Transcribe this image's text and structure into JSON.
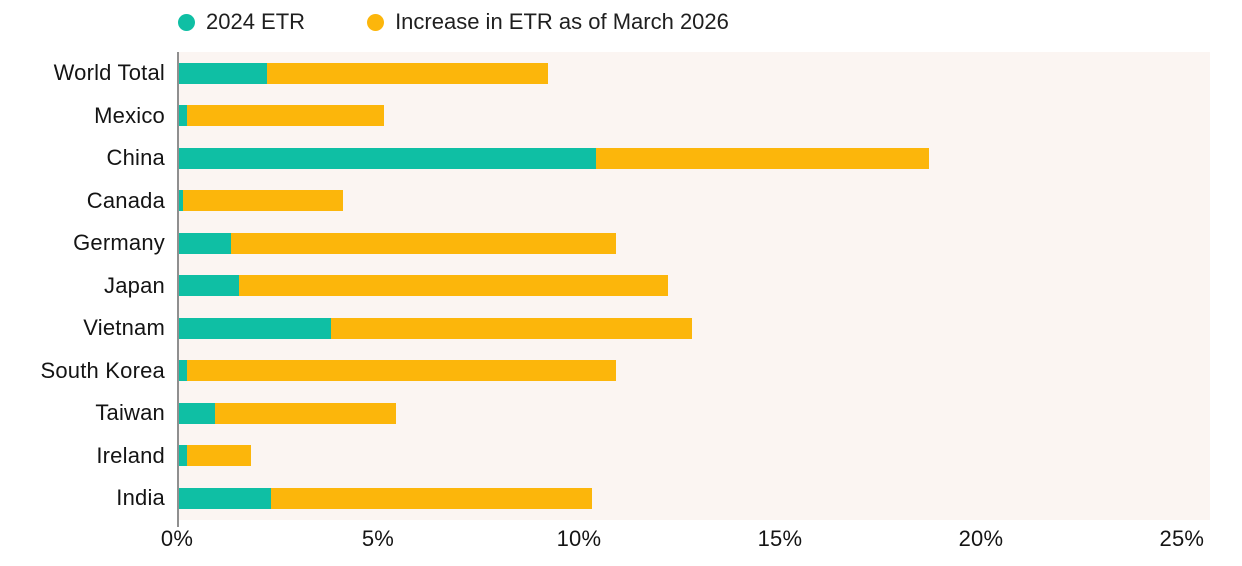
{
  "chart_data": {
    "type": "bar",
    "orientation": "horizontal",
    "stacked": true,
    "title": "",
    "xlabel": "",
    "ylabel": "",
    "categories": [
      "World Total",
      "Mexico",
      "China",
      "Canada",
      "Germany",
      "Japan",
      "Vietnam",
      "South Korea",
      "Taiwan",
      "Ireland",
      "India"
    ],
    "series": [
      {
        "name": "2024 ETR",
        "color": "#0fbfa4",
        "values": [
          2.2,
          0.2,
          10.4,
          0.1,
          1.3,
          1.5,
          3.8,
          0.2,
          0.9,
          0.2,
          2.3
        ]
      },
      {
        "name": "Increase in ETR as of March 2026",
        "color": "#fcb60b",
        "values": [
          7.0,
          4.9,
          8.3,
          4.0,
          9.6,
          10.7,
          9.0,
          10.7,
          4.5,
          1.6,
          8.0
        ]
      }
    ],
    "stack_totals": [
      9.2,
      5.1,
      18.7,
      4.1,
      10.9,
      12.2,
      12.8,
      10.9,
      5.4,
      1.8,
      10.3
    ],
    "x_tick_labels": [
      "0%",
      "5%",
      "10%",
      "15%",
      "20%",
      "25%"
    ],
    "x_tick_values": [
      0,
      5,
      10,
      15,
      20,
      25
    ],
    "xlim": [
      0,
      25
    ],
    "unit": "%",
    "grid": false,
    "legend_position": "top",
    "plot_background": "#fbf5f2",
    "axis_line_color": "#8f8f8f"
  }
}
